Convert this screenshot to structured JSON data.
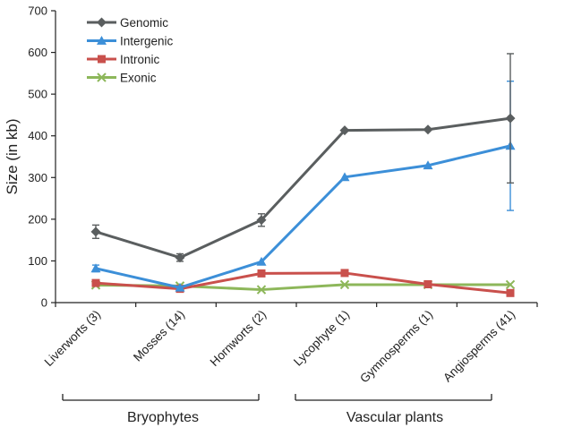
{
  "chart_data": {
    "type": "line",
    "title": "",
    "xlabel": "",
    "ylabel": "Size (in kb)",
    "ylim": [
      0,
      700
    ],
    "yticks": [
      "0",
      "100",
      "200",
      "300",
      "400",
      "500",
      "600",
      "700"
    ],
    "categories": [
      "Liverworts (3)",
      "Mosses (14)",
      "Hornworts (2)",
      "Lycophyte (1)",
      "Gymnosperms (1)",
      "Angiosperms (41)"
    ],
    "groups": [
      {
        "label": "Bryophytes",
        "from": 0,
        "to": 2
      },
      {
        "label": "Vascular plants",
        "from": 3,
        "to": 5
      }
    ],
    "legend_position": "top-left",
    "grid": false,
    "series": [
      {
        "name": "Genomic",
        "color": "#5a5e5f",
        "marker": "diamond",
        "values": [
          170,
          108,
          198,
          413,
          415,
          442
        ],
        "errors": [
          16,
          9,
          15,
          null,
          null,
          155
        ]
      },
      {
        "name": "Intergenic",
        "color": "#3c8fd8",
        "marker": "triangle",
        "values": [
          82,
          36,
          98,
          301,
          329,
          376
        ],
        "errors": [
          8,
          null,
          null,
          null,
          null,
          155
        ]
      },
      {
        "name": "Intronic",
        "color": "#c9504c",
        "marker": "square",
        "values": [
          47,
          33,
          70,
          71,
          44,
          23
        ],
        "errors": [
          null,
          null,
          null,
          null,
          null,
          null
        ]
      },
      {
        "name": "Exonic",
        "color": "#8db75a",
        "marker": "x",
        "values": [
          42,
          40,
          31,
          43,
          43,
          43
        ],
        "errors": [
          null,
          null,
          null,
          null,
          null,
          null
        ]
      }
    ]
  }
}
